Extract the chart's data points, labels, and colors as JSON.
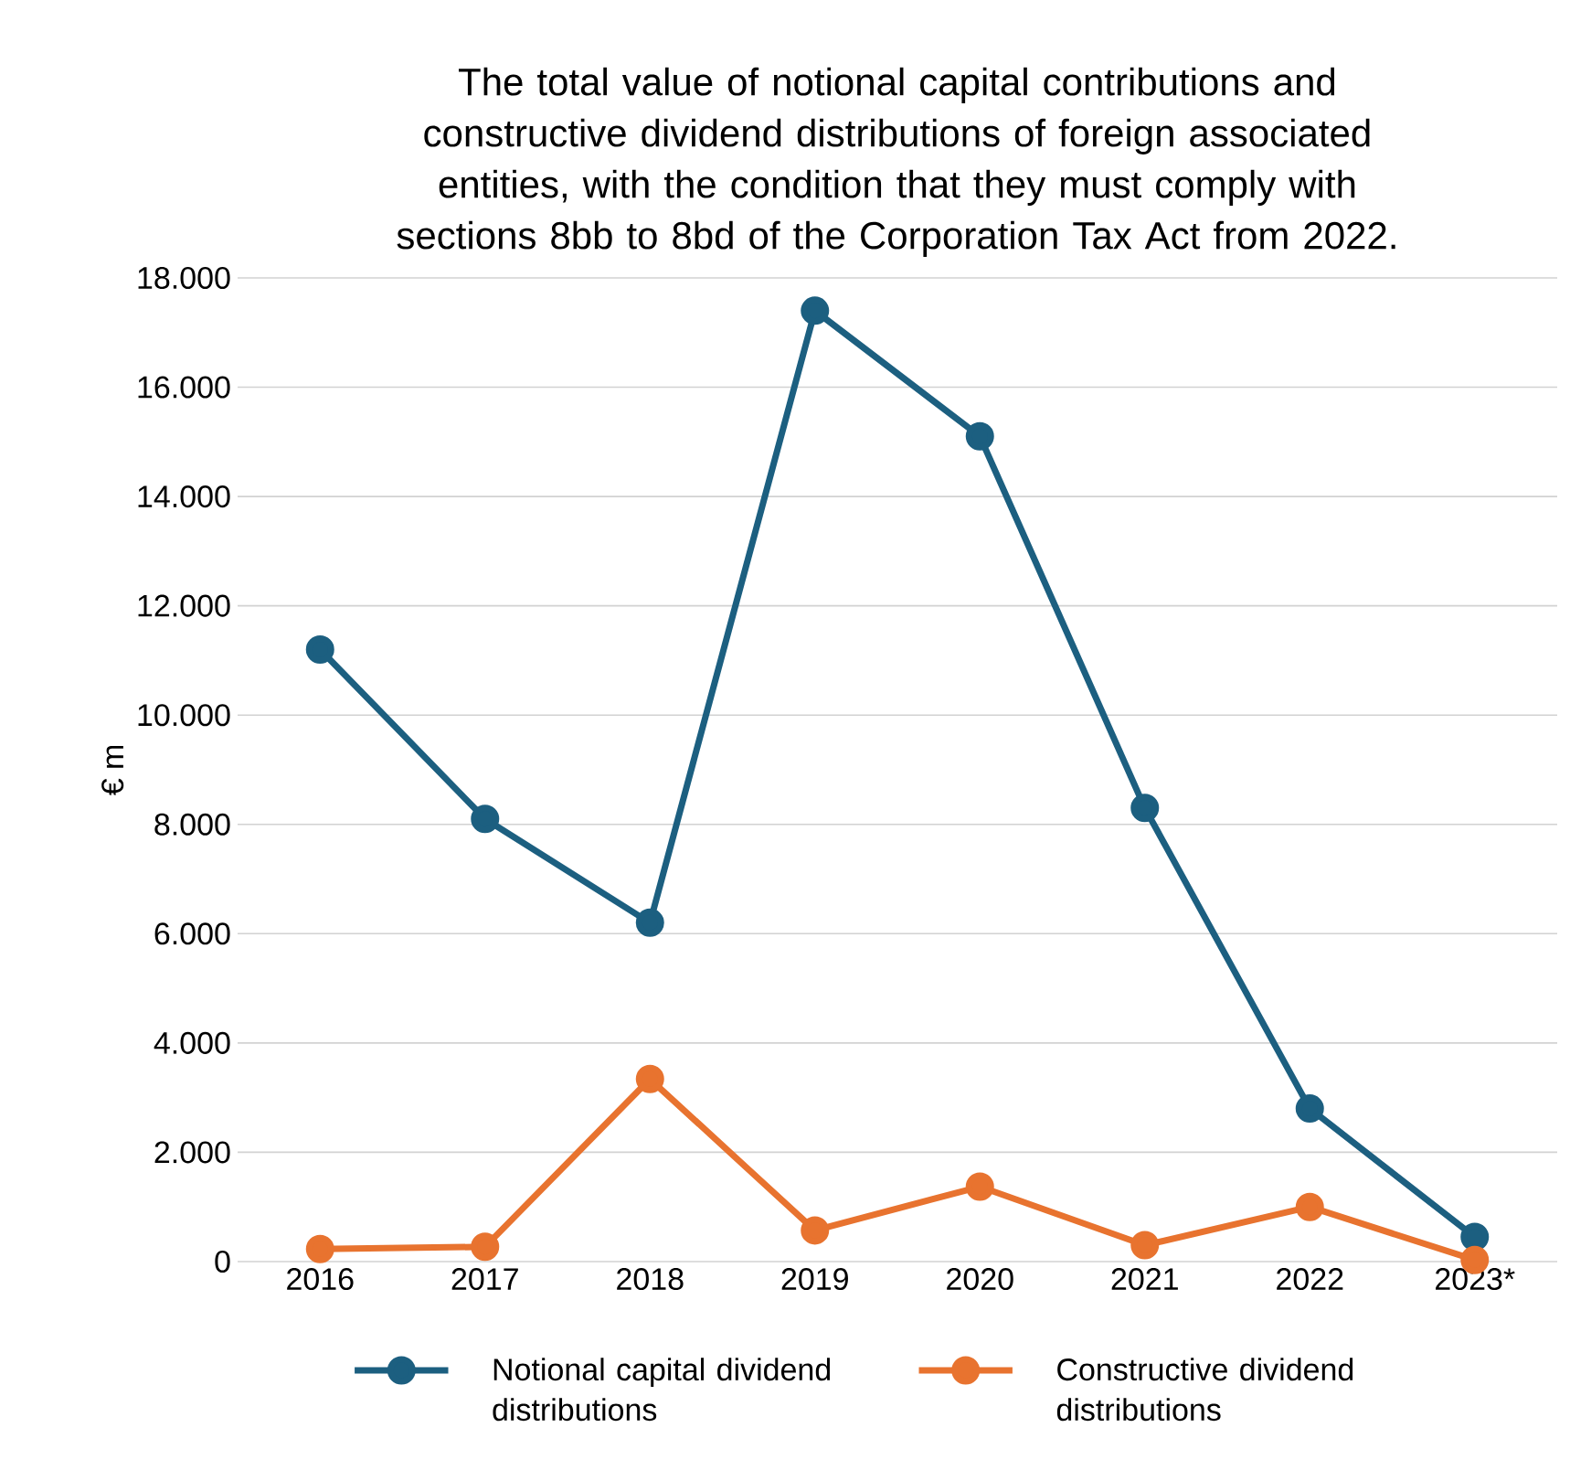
{
  "chart_data": {
    "type": "line",
    "title": "The total value of notional capital contributions and constructive dividend distributions of foreign associated entities, with the condition that they must comply with sections 8bb to 8bd of the Corporation Tax Act from 2022.",
    "ylabel": "€ m",
    "categories": [
      "2016",
      "2017",
      "2018",
      "2019",
      "2020",
      "2021",
      "2022",
      "2023*"
    ],
    "series": [
      {
        "name": "Notional capital dividend distributions",
        "color": "#1c5f80",
        "values": [
          11200,
          8100,
          6200,
          17400,
          15100,
          8300,
          2800,
          450
        ]
      },
      {
        "name": "Constructive dividend distributions",
        "color": "#e8732f",
        "values": [
          230,
          270,
          3340,
          570,
          1370,
          300,
          1000,
          30
        ]
      }
    ],
    "ylim": [
      0,
      18000
    ],
    "yticks": [
      0,
      {
        "value": 2000,
        "label": "2.000"
      },
      {
        "value": 4000,
        "label": "4.000"
      },
      {
        "value": 6000,
        "label": "6.000"
      },
      {
        "value": 8000,
        "label": "8.000"
      },
      {
        "value": 10000,
        "label": "10.000"
      },
      {
        "value": 12000,
        "label": "12.000"
      },
      {
        "value": 14000,
        "label": "14.000"
      },
      {
        "value": 16000,
        "label": "16.000"
      },
      {
        "value": 18000,
        "label": "18.000"
      }
    ],
    "grid": "y",
    "legend": "bottom",
    "marker": "circle",
    "line_style": "solid"
  }
}
